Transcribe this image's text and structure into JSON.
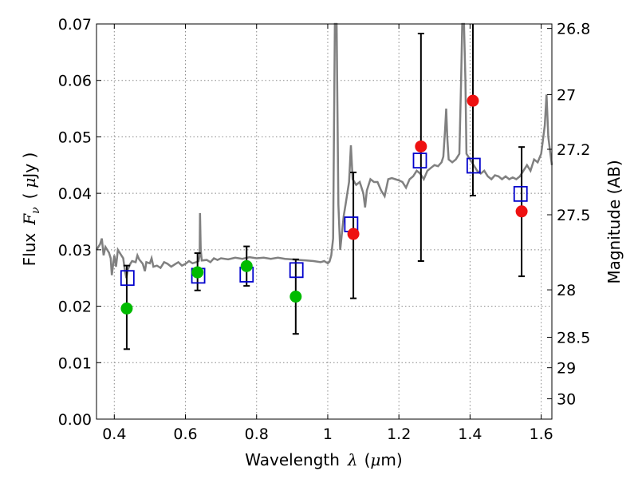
{
  "chart_data": {
    "type": "scatter",
    "title": "",
    "xlabel": "Wavelength",
    "xlabel_symbol": "λ",
    "xlabel_unit_open": "(",
    "xlabel_unit_mu": "μ",
    "xlabel_unit_rest": "m)",
    "ylabel": "Flux",
    "ylabel_symbol": "F",
    "ylabel_subscript": "ν",
    "ylabel_unit_open": "(",
    "ylabel_unit_mu": "μ",
    "ylabel_unit_rest": "Jy )",
    "y2label": "Magnitude (AB)",
    "xlim": [
      0.35,
      1.63
    ],
    "ylim": [
      0.0,
      0.07
    ],
    "grid": true,
    "x_ticks": [
      0.4,
      0.6,
      0.8,
      1.0,
      1.2,
      1.4,
      1.6
    ],
    "x_tick_labels": [
      "0.4",
      "0.6",
      "0.8",
      "1",
      "1.2",
      "1.4",
      "1.6"
    ],
    "y_ticks": [
      0.0,
      0.01,
      0.02,
      0.03,
      0.04,
      0.05,
      0.06,
      0.07
    ],
    "y_tick_labels": [
      "0.00",
      "0.01",
      "0.02",
      "0.03",
      "0.04",
      "0.05",
      "0.06",
      "0.07"
    ],
    "y2_ticks": [
      {
        "flux": 0.0692,
        "label": "26.8"
      },
      {
        "flux": 0.0575,
        "label": "27"
      },
      {
        "flux": 0.0478,
        "label": "27.2"
      },
      {
        "flux": 0.0362,
        "label": "27.5"
      },
      {
        "flux": 0.0229,
        "label": "28"
      },
      {
        "flux": 0.0145,
        "label": "28.5"
      },
      {
        "flux": 0.0091,
        "label": "29"
      },
      {
        "flux": 0.0036,
        "label": "30"
      }
    ],
    "colors": {
      "spectrum": "#808080",
      "model_boxes": "#0000cc",
      "obs_green": "#00bb00",
      "obs_red": "#ee1111",
      "errorbar": "#000000",
      "grid": "#888888"
    },
    "series": [
      {
        "marker": "line",
        "points": [
          [
            0.35,
            0.03
          ],
          [
            0.36,
            0.031
          ],
          [
            0.365,
            0.032
          ],
          [
            0.37,
            0.029
          ],
          [
            0.375,
            0.0305
          ],
          [
            0.38,
            0.03
          ],
          [
            0.385,
            0.0295
          ],
          [
            0.39,
            0.0285
          ],
          [
            0.393,
            0.0255
          ],
          [
            0.396,
            0.027
          ],
          [
            0.4,
            0.029
          ],
          [
            0.405,
            0.027
          ],
          [
            0.41,
            0.03
          ],
          [
            0.415,
            0.0295
          ],
          [
            0.42,
            0.029
          ],
          [
            0.425,
            0.0285
          ],
          [
            0.43,
            0.0262
          ],
          [
            0.434,
            0.025
          ],
          [
            0.438,
            0.0265
          ],
          [
            0.445,
            0.0275
          ],
          [
            0.45,
            0.028
          ],
          [
            0.46,
            0.0278
          ],
          [
            0.465,
            0.029
          ],
          [
            0.47,
            0.0283
          ],
          [
            0.48,
            0.0275
          ],
          [
            0.486,
            0.0262
          ],
          [
            0.49,
            0.0278
          ],
          [
            0.5,
            0.0276
          ],
          [
            0.505,
            0.0285
          ],
          [
            0.51,
            0.027
          ],
          [
            0.52,
            0.0272
          ],
          [
            0.53,
            0.0268
          ],
          [
            0.54,
            0.0278
          ],
          [
            0.55,
            0.0275
          ],
          [
            0.56,
            0.027
          ],
          [
            0.57,
            0.0274
          ],
          [
            0.58,
            0.0278
          ],
          [
            0.59,
            0.0272
          ],
          [
            0.6,
            0.0275
          ],
          [
            0.61,
            0.028
          ],
          [
            0.62,
            0.0276
          ],
          [
            0.63,
            0.0278
          ],
          [
            0.637,
            0.028
          ],
          [
            0.64,
            0.029
          ],
          [
            0.641,
            0.0365
          ],
          [
            0.643,
            0.03
          ],
          [
            0.646,
            0.0281
          ],
          [
            0.66,
            0.0282
          ],
          [
            0.67,
            0.0278
          ],
          [
            0.68,
            0.0285
          ],
          [
            0.69,
            0.0282
          ],
          [
            0.7,
            0.0285
          ],
          [
            0.72,
            0.0283
          ],
          [
            0.74,
            0.0286
          ],
          [
            0.76,
            0.0284
          ],
          [
            0.78,
            0.0287
          ],
          [
            0.8,
            0.0285
          ],
          [
            0.82,
            0.0286
          ],
          [
            0.84,
            0.0284
          ],
          [
            0.86,
            0.0286
          ],
          [
            0.88,
            0.0284
          ],
          [
            0.9,
            0.0283
          ],
          [
            0.92,
            0.0282
          ],
          [
            0.94,
            0.0281
          ],
          [
            0.96,
            0.028
          ],
          [
            0.98,
            0.0278
          ],
          [
            0.99,
            0.028
          ],
          [
            1.0,
            0.0276
          ],
          [
            1.005,
            0.0279
          ],
          [
            1.01,
            0.029
          ],
          [
            1.015,
            0.032
          ],
          [
            1.02,
            0.07
          ],
          [
            1.025,
            0.07
          ],
          [
            1.03,
            0.038
          ],
          [
            1.035,
            0.03
          ],
          [
            1.04,
            0.033
          ],
          [
            1.045,
            0.036
          ],
          [
            1.05,
            0.038
          ],
          [
            1.055,
            0.04
          ],
          [
            1.06,
            0.042
          ],
          [
            1.065,
            0.0485
          ],
          [
            1.07,
            0.0425
          ],
          [
            1.075,
            0.042
          ],
          [
            1.08,
            0.0415
          ],
          [
            1.09,
            0.042
          ],
          [
            1.1,
            0.04
          ],
          [
            1.105,
            0.0375
          ],
          [
            1.11,
            0.0405
          ],
          [
            1.12,
            0.0425
          ],
          [
            1.13,
            0.042
          ],
          [
            1.14,
            0.042
          ],
          [
            1.15,
            0.0405
          ],
          [
            1.16,
            0.0395
          ],
          [
            1.17,
            0.0425
          ],
          [
            1.18,
            0.0427
          ],
          [
            1.19,
            0.0425
          ],
          [
            1.2,
            0.0423
          ],
          [
            1.21,
            0.042
          ],
          [
            1.22,
            0.041
          ],
          [
            1.23,
            0.0425
          ],
          [
            1.24,
            0.043
          ],
          [
            1.25,
            0.044
          ],
          [
            1.26,
            0.0435
          ],
          [
            1.27,
            0.0425
          ],
          [
            1.28,
            0.044
          ],
          [
            1.29,
            0.0445
          ],
          [
            1.3,
            0.045
          ],
          [
            1.31,
            0.0448
          ],
          [
            1.32,
            0.0455
          ],
          [
            1.325,
            0.0465
          ],
          [
            1.33,
            0.0515
          ],
          [
            1.333,
            0.055
          ],
          [
            1.336,
            0.05
          ],
          [
            1.34,
            0.046
          ],
          [
            1.35,
            0.0455
          ],
          [
            1.36,
            0.046
          ],
          [
            1.37,
            0.047
          ],
          [
            1.375,
            0.06
          ],
          [
            1.378,
            0.07
          ],
          [
            1.383,
            0.07
          ],
          [
            1.387,
            0.06
          ],
          [
            1.39,
            0.047
          ],
          [
            1.4,
            0.046
          ],
          [
            1.41,
            0.045
          ],
          [
            1.42,
            0.044
          ],
          [
            1.43,
            0.0435
          ],
          [
            1.44,
            0.044
          ],
          [
            1.45,
            0.043
          ],
          [
            1.46,
            0.0425
          ],
          [
            1.47,
            0.0432
          ],
          [
            1.48,
            0.043
          ],
          [
            1.49,
            0.0425
          ],
          [
            1.5,
            0.043
          ],
          [
            1.51,
            0.0425
          ],
          [
            1.52,
            0.0428
          ],
          [
            1.53,
            0.0425
          ],
          [
            1.54,
            0.043
          ],
          [
            1.55,
            0.044
          ],
          [
            1.56,
            0.045
          ],
          [
            1.57,
            0.044
          ],
          [
            1.58,
            0.046
          ],
          [
            1.59,
            0.0455
          ],
          [
            1.6,
            0.047
          ],
          [
            1.61,
            0.052
          ],
          [
            1.615,
            0.0575
          ],
          [
            1.62,
            0.05
          ],
          [
            1.63,
            0.045
          ]
        ]
      },
      {
        "marker": "square",
        "x": [
          0.437,
          0.636,
          0.772,
          0.912,
          1.066,
          1.259,
          1.41,
          1.542
        ],
        "y": [
          0.025,
          0.0254,
          0.0256,
          0.0264,
          0.0345,
          0.0458,
          0.0449,
          0.0399
        ]
      },
      {
        "marker": "circle",
        "color": "green",
        "x": [
          0.435,
          0.634,
          0.772,
          0.91
        ],
        "y": [
          0.0196,
          0.026,
          0.0271,
          0.0217
        ],
        "err": [
          [
            0.0124,
            0.0272
          ],
          [
            0.0228,
            0.0294
          ],
          [
            0.0236,
            0.0306
          ],
          [
            0.0151,
            0.0283
          ]
        ]
      },
      {
        "marker": "circle",
        "color": "red",
        "x": [
          1.072,
          1.262,
          1.408,
          1.545
        ],
        "y": [
          0.0328,
          0.0483,
          0.0564,
          0.0368
        ],
        "err": [
          [
            0.0214,
            0.0437
          ],
          [
            0.028,
            0.0683
          ],
          [
            0.0396,
            0.07
          ],
          [
            0.0253,
            0.0482
          ]
        ]
      }
    ]
  }
}
